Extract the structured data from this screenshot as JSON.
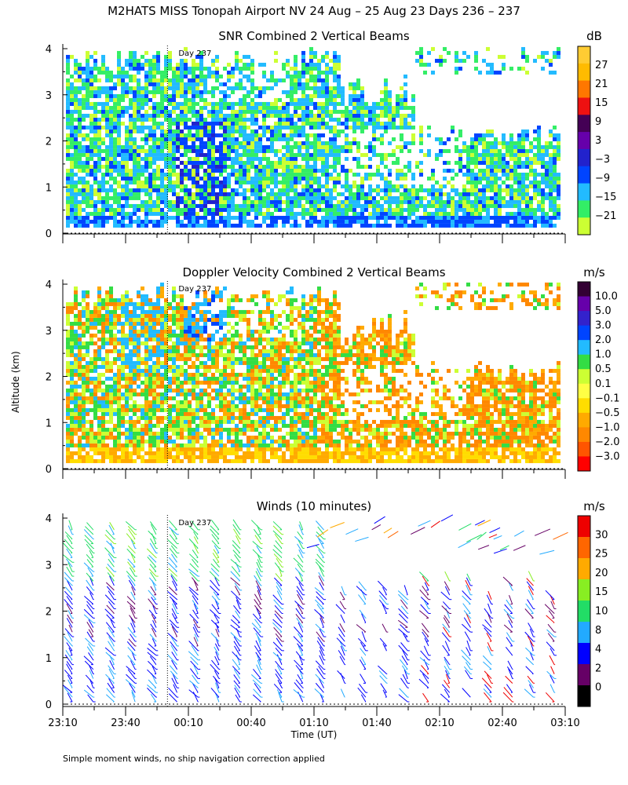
{
  "title": "M2HATS MISS Tonopah Airport NV  24 Aug – 25 Aug 23 Days 236 – 237",
  "footnote": "Simple moment winds, no ship navigation correction applied",
  "y_axis_label": "Altitude (km)",
  "x_axis_label": "Time (UT)",
  "colors": {
    "snr": [
      "#ccff33",
      "#33ee66",
      "#22bbff",
      "#0044ff",
      "#2222cc",
      "#6600aa",
      "#440055",
      "#ee1111",
      "#ff7700",
      "#ffbb00",
      "#ffcc33"
    ],
    "doppler": [
      "#ff0000",
      "#ff5500",
      "#ff8800",
      "#ffaa00",
      "#ffdd00",
      "#ffff44",
      "#ccff33",
      "#33dd44",
      "#22bbff",
      "#0044ff",
      "#3322cc",
      "#6600aa",
      "#330033"
    ],
    "winds": [
      "#000000",
      "#660066",
      "#0000ff",
      "#22aaff",
      "#22dd66",
      "#88ee22",
      "#ffaa00",
      "#ff6600",
      "#ee0000"
    ]
  },
  "chart_data": [
    {
      "type": "heatmap",
      "title": "SNR Combined 2 Vertical Beams",
      "unit": "dB",
      "day_marker": {
        "label": "Day 237",
        "time": "00:00"
      },
      "x_range": [
        "23:10",
        "03:10"
      ],
      "ylim": [
        0,
        4
      ],
      "y_ticks": [
        "0",
        "1",
        "2",
        "3",
        "4"
      ],
      "colorbar_labels": [
        "27",
        "21",
        "15",
        "9",
        "3",
        "−3",
        "−9",
        "−15",
        "−21"
      ]
    },
    {
      "type": "heatmap",
      "title": "Doppler Velocity Combined 2 Vertical Beams",
      "unit": "m/s",
      "day_marker": {
        "label": "Day 237",
        "time": "00:00"
      },
      "x_range": [
        "23:10",
        "03:10"
      ],
      "ylim": [
        0,
        4
      ],
      "y_ticks": [
        "0",
        "1",
        "2",
        "3",
        "4"
      ],
      "colorbar_labels": [
        "10.0",
        "5.0",
        "3.0",
        "2.0",
        "1.0",
        "0.5",
        "0.1",
        "−0.1",
        "−0.5",
        "−1.0",
        "−2.0",
        "−3.0"
      ]
    },
    {
      "type": "scatter",
      "title": "Winds (10 minutes)",
      "unit": "m/s",
      "day_marker": {
        "label": "Day 237",
        "time": "00:00"
      },
      "x_range": [
        "23:10",
        "03:10"
      ],
      "ylim": [
        0,
        4
      ],
      "y_ticks": [
        "0",
        "1",
        "2",
        "3",
        "4"
      ],
      "x_tick_labels": [
        "23:10",
        "23:40",
        "00:10",
        "00:40",
        "01:10",
        "01:40",
        "02:10",
        "02:40",
        "03:10"
      ],
      "colorbar_labels": [
        "30",
        "25",
        "20",
        "15",
        "10",
        "8",
        "4",
        "2",
        "0"
      ]
    }
  ]
}
